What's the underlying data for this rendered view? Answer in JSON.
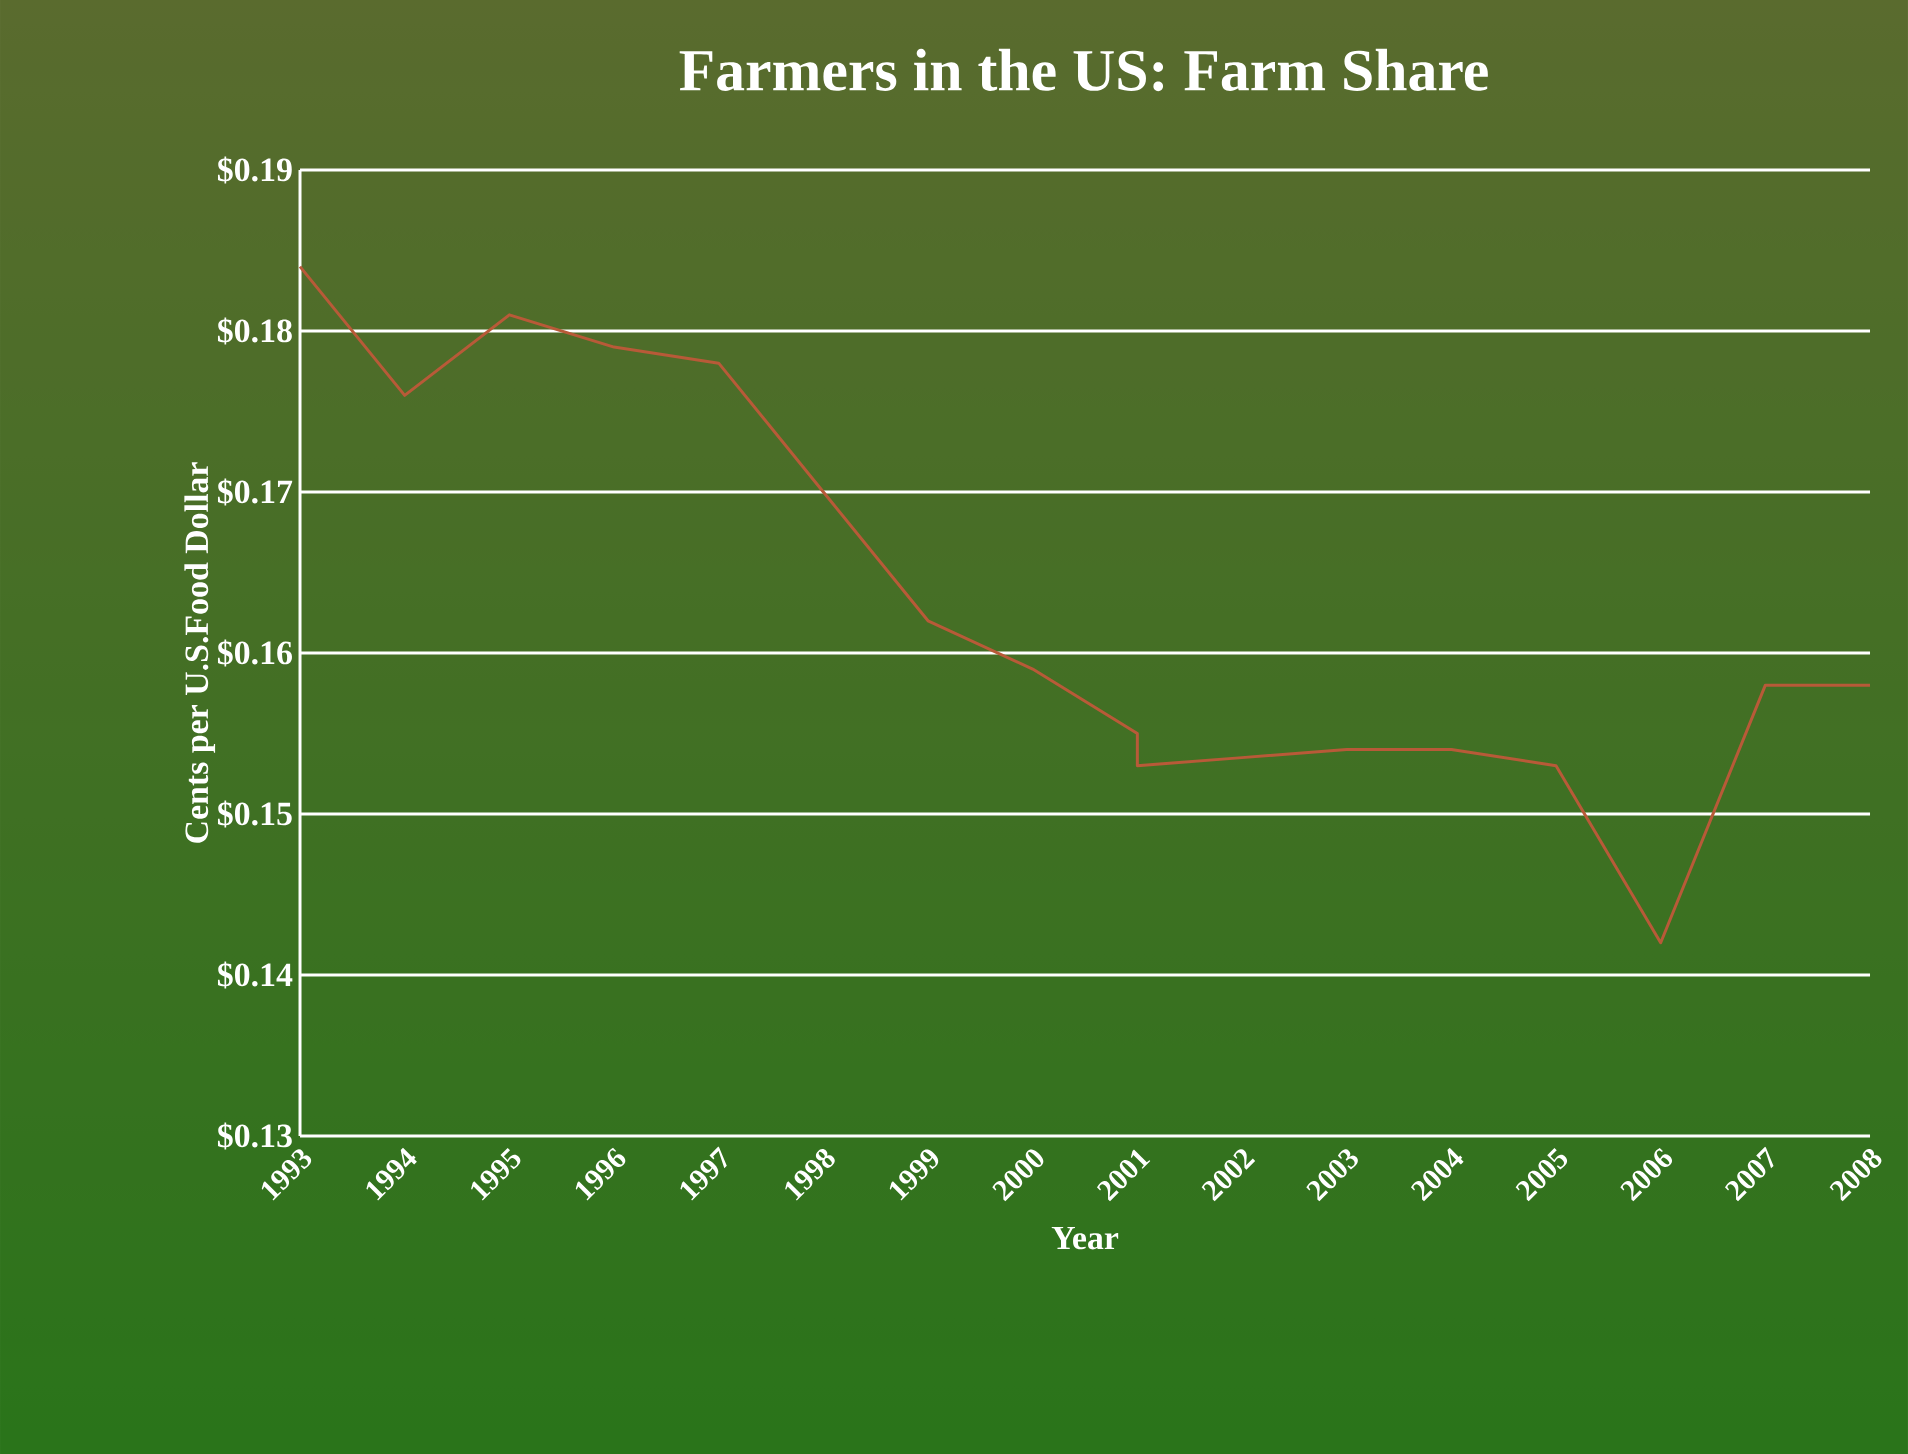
{
  "chart_data": {
    "type": "line",
    "title": "Farmers in the US:  Farm Share",
    "xlabel": "Year",
    "ylabel": "Cents per U.S.Food  Dollar",
    "x": [
      1993,
      1994,
      1995,
      1996,
      1997,
      1998,
      1999,
      2000,
      2001,
      2001,
      2002,
      2003,
      2004,
      2005,
      2006,
      2007,
      2008
    ],
    "series": [
      {
        "color": "#b85a38",
        "values": [
          0.184,
          0.176,
          0.181,
          0.179,
          0.178,
          0.17,
          0.162,
          0.159,
          0.155,
          0.153,
          0.1535,
          0.154,
          0.154,
          0.153,
          0.142,
          0.158,
          0.158
        ]
      }
    ],
    "xlim": [
      1993,
      2008
    ],
    "xticks": [
      1993,
      1994,
      1995,
      1996,
      1997,
      1998,
      1999,
      2000,
      2001,
      2002,
      2003,
      2004,
      2005,
      2006,
      2007,
      2008
    ],
    "ylim": [
      0.13,
      0.19
    ],
    "yticks": [
      {
        "value": 0.13,
        "label": "$0.13"
      },
      {
        "value": 0.14,
        "label": "$0.14"
      },
      {
        "value": 0.15,
        "label": "$0.15"
      },
      {
        "value": 0.16,
        "label": "$0.16"
      },
      {
        "value": 0.17,
        "label": "$0.17"
      },
      {
        "value": 0.18,
        "label": "$0.18"
      },
      {
        "value": 0.19,
        "label": "$0.19"
      }
    ],
    "grid": "y",
    "legend": false,
    "marker": "none",
    "line_style": "solid"
  }
}
